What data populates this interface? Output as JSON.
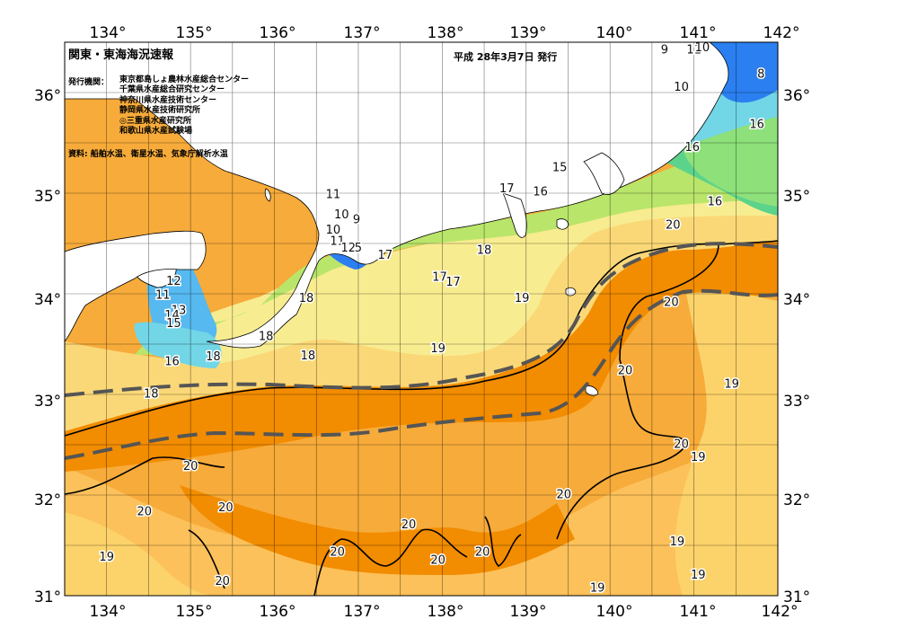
{
  "header": {
    "title": "関東・東海海況速報",
    "date": "平成 28年3月7日 発行"
  },
  "issuer": {
    "label": "発行機関：",
    "agencies": [
      "東京都島しょ農林水産総合センター",
      "千葉県水産総合研究センター",
      "神奈川県水産技術センター",
      "静岡県水産技術研究所",
      "◎三重県水産研究所",
      "和歌山県水産試験場"
    ]
  },
  "source": "資料: 船舶水温、衛星水温、気象庁解析水温",
  "axes": {
    "lon_ticks": [
      "134°",
      "135°",
      "136°",
      "137°",
      "138°",
      "139°",
      "140°",
      "141°",
      "142°"
    ],
    "lat_ticks": [
      "36°",
      "35°",
      "34°",
      "33°",
      "32°",
      "31°"
    ]
  },
  "isotherm_labels": [
    {
      "text": "9",
      "lon": 140.65,
      "lat": 36.42
    },
    {
      "text": "11",
      "lon": 141.0,
      "lat": 36.42
    },
    {
      "text": "10",
      "lon": 141.1,
      "lat": 36.44
    },
    {
      "text": "8",
      "lon": 141.8,
      "lat": 36.18
    },
    {
      "text": "10",
      "lon": 140.85,
      "lat": 36.05
    },
    {
      "text": "16",
      "lon": 141.75,
      "lat": 35.68
    },
    {
      "text": "16",
      "lon": 140.98,
      "lat": 35.45
    },
    {
      "text": "15",
      "lon": 139.4,
      "lat": 35.25
    },
    {
      "text": "16",
      "lon": 139.17,
      "lat": 35.01
    },
    {
      "text": "17",
      "lon": 138.77,
      "lat": 35.04
    },
    {
      "text": "16",
      "lon": 141.25,
      "lat": 34.91
    },
    {
      "text": "20",
      "lon": 140.75,
      "lat": 34.68
    },
    {
      "text": "11",
      "lon": 136.7,
      "lat": 34.98
    },
    {
      "text": "10",
      "lon": 136.8,
      "lat": 34.78
    },
    {
      "text": "9",
      "lon": 136.98,
      "lat": 34.73
    },
    {
      "text": "10",
      "lon": 136.7,
      "lat": 34.63
    },
    {
      "text": "11",
      "lon": 136.75,
      "lat": 34.52
    },
    {
      "text": "12",
      "lon": 136.88,
      "lat": 34.45
    },
    {
      "text": "5",
      "lon": 137.0,
      "lat": 34.45
    },
    {
      "text": "17",
      "lon": 137.32,
      "lat": 34.38
    },
    {
      "text": "18",
      "lon": 138.5,
      "lat": 34.43
    },
    {
      "text": "12",
      "lon": 134.8,
      "lat": 34.12
    },
    {
      "text": "11",
      "lon": 134.67,
      "lat": 33.98
    },
    {
      "text": "13",
      "lon": 134.86,
      "lat": 33.83
    },
    {
      "text": "14",
      "lon": 134.78,
      "lat": 33.78
    },
    {
      "text": "15",
      "lon": 134.8,
      "lat": 33.7
    },
    {
      "text": "17",
      "lon": 137.97,
      "lat": 34.16
    },
    {
      "text": "17",
      "lon": 138.13,
      "lat": 34.11
    },
    {
      "text": "18",
      "lon": 136.38,
      "lat": 33.95
    },
    {
      "text": "19",
      "lon": 138.95,
      "lat": 33.95
    },
    {
      "text": "20",
      "lon": 140.73,
      "lat": 33.91
    },
    {
      "text": "18",
      "lon": 135.9,
      "lat": 33.57
    },
    {
      "text": "19",
      "lon": 137.95,
      "lat": 33.45
    },
    {
      "text": "16",
      "lon": 134.78,
      "lat": 33.32
    },
    {
      "text": "18",
      "lon": 135.27,
      "lat": 33.37
    },
    {
      "text": "18",
      "lon": 136.4,
      "lat": 33.38
    },
    {
      "text": "20",
      "lon": 140.18,
      "lat": 33.23
    },
    {
      "text": "19",
      "lon": 141.45,
      "lat": 33.1
    },
    {
      "text": "18",
      "lon": 134.53,
      "lat": 33.0
    },
    {
      "text": "20",
      "lon": 140.85,
      "lat": 32.5
    },
    {
      "text": "19",
      "lon": 141.05,
      "lat": 32.37
    },
    {
      "text": "20",
      "lon": 135.0,
      "lat": 32.28
    },
    {
      "text": "20",
      "lon": 139.45,
      "lat": 32.0
    },
    {
      "text": "20",
      "lon": 135.42,
      "lat": 31.87
    },
    {
      "text": "20",
      "lon": 134.45,
      "lat": 31.83
    },
    {
      "text": "20",
      "lon": 137.6,
      "lat": 31.7
    },
    {
      "text": "19",
      "lon": 140.8,
      "lat": 31.53
    },
    {
      "text": "20",
      "lon": 136.75,
      "lat": 31.43
    },
    {
      "text": "20",
      "lon": 138.48,
      "lat": 31.43
    },
    {
      "text": "19",
      "lon": 134.0,
      "lat": 31.38
    },
    {
      "text": "20",
      "lon": 137.95,
      "lat": 31.35
    },
    {
      "text": "19",
      "lon": 141.05,
      "lat": 31.2
    },
    {
      "text": "20",
      "lon": 135.38,
      "lat": 31.14
    },
    {
      "text": "19",
      "lon": 139.85,
      "lat": 31.07
    }
  ],
  "colors": {
    "warm_core": "#f28c00",
    "warm": "#f7a42a",
    "mild": "#fcd36a",
    "temperate": "#f8ec90",
    "cool": "#b9e56a",
    "cold": "#5bd38b",
    "cyan": "#72d6e6",
    "blue": "#2b7ff0",
    "land": "#ffffff",
    "kuroshio_path": "#555555"
  }
}
